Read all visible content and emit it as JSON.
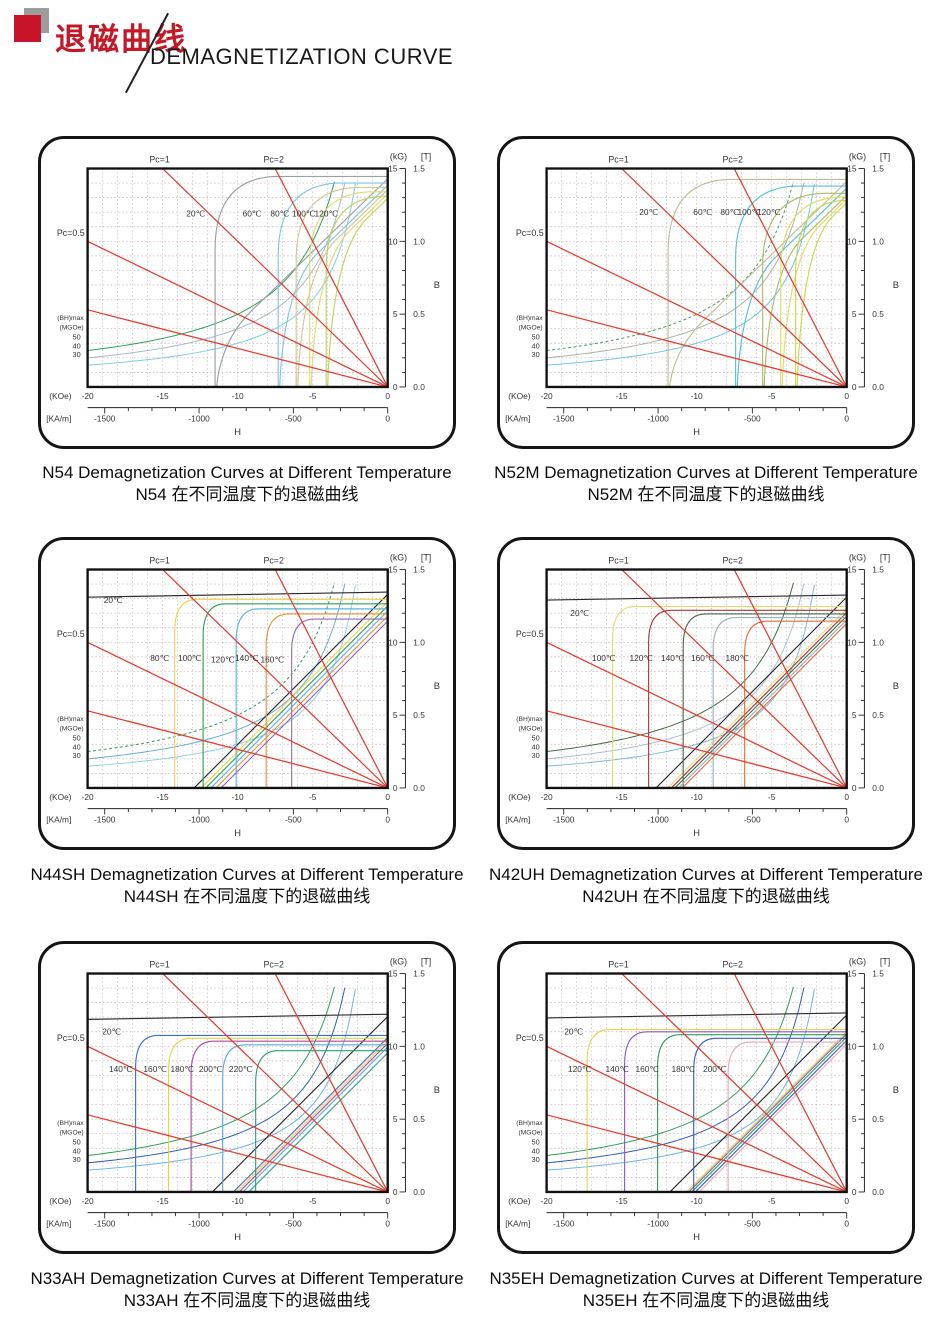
{
  "header": {
    "title_zh": "退磁曲线",
    "title_en": "DEMAGNETIZATION CURVE",
    "accent_color": "#c81428"
  },
  "axes": {
    "pc1": "Pc=1",
    "pc2": "Pc=2",
    "pc05": "Pc=0.5",
    "kg": "(kG)",
    "t": "[T]",
    "kg_ticks": [
      15,
      10,
      5,
      0
    ],
    "t_ticks": [
      "1.5",
      "1.0",
      "0.5",
      "0.0"
    ],
    "koe": "(KOe)",
    "koe_ticks": [
      -20,
      -15,
      -10,
      -5,
      0
    ],
    "kam": "[KA/m]",
    "kam_ticks": [
      -1500,
      -1000,
      -500,
      0
    ],
    "h": "H",
    "b": "B",
    "bh": [
      "(BH)max",
      "(MGOe)"
    ],
    "bh_values": [
      "50",
      "40",
      "30"
    ],
    "x_range_koe": [
      -20,
      0
    ],
    "y_range_kg": [
      0,
      15
    ],
    "load_line_color": "#e23b2e",
    "load_lines": [
      [
        -7.5,
        15
      ],
      [
        -15,
        15
      ],
      [
        -20,
        10
      ],
      [
        -20,
        5.3
      ]
    ]
  },
  "chart_data": [
    {
      "grade": "N54",
      "type": "line",
      "title_en": "N54 Demagnetization Curves at Different Temperature",
      "title_zh": "N54 在不同温度下的退磁曲线",
      "hyp_colors": [
        "#2f9e57",
        "#a4bac6",
        "#7ecbe4"
      ],
      "dash50": false,
      "temps": [
        {
          "label": "20℃",
          "color": "#9aa0a0",
          "jr": 14.45,
          "hcj": 11.5,
          "soft": true,
          "lp": [
            -12.8,
            11.7
          ]
        },
        {
          "label": "60℃",
          "color": "#7ec4e4",
          "jr": 14.0,
          "hcj": 7.3,
          "soft": true,
          "lp": [
            -9.05,
            11.7
          ]
        },
        {
          "label": "80℃",
          "color": "#d2c694",
          "jr": 13.7,
          "hcj": 6.1,
          "soft": true,
          "lp": [
            -7.2,
            11.7
          ]
        },
        {
          "label": "100℃",
          "color": "#e4da74",
          "jr": 13.4,
          "hcj": 5.2,
          "soft": true,
          "lp": [
            -5.6,
            11.7
          ]
        },
        {
          "label": "120℃",
          "color": "#bcd45e",
          "jr": 13.1,
          "hcj": 4.1,
          "soft": true,
          "lp": [
            -4.1,
            11.7
          ]
        }
      ]
    },
    {
      "grade": "N52M",
      "type": "line",
      "title_en": "N52M Demagnetization Curves at Different Temperature",
      "title_zh": "N52M 在不同温度下的退磁曲线",
      "hyp_colors": [
        "#3fa05f",
        "#a8b4a0",
        "#6ec4e0"
      ],
      "dash50": true,
      "temps": [
        {
          "label": "20℃",
          "color": "#c0bc96",
          "jr": 14.25,
          "hcj": 11.9,
          "soft": true,
          "lp": [
            -13.2,
            11.8
          ]
        },
        {
          "label": "60℃",
          "color": "#58c0d8",
          "jr": 13.8,
          "hcj": 7.4,
          "soft": true,
          "lp": [
            -9.6,
            11.8
          ]
        },
        {
          "label": "80℃",
          "color": "#a8bc6a",
          "jr": 13.3,
          "hcj": 5.6,
          "soft": true,
          "lp": [
            -7.8,
            11.8
          ]
        },
        {
          "label": "100℃",
          "color": "#e4d966",
          "jr": 13.05,
          "hcj": 4.4,
          "soft": true,
          "lp": [
            -6.5,
            11.8
          ]
        },
        {
          "label": "120℃",
          "color": "#c8d848",
          "jr": 12.8,
          "hcj": 3.4,
          "soft": true,
          "lp": [
            -5.2,
            11.8
          ]
        }
      ]
    },
    {
      "grade": "N44SH",
      "type": "line",
      "title_en": "N44SH Demagnetization Curves at Different Temperature",
      "title_zh": "N44SH 在不同温度下的退磁曲线",
      "hyp_colors": [
        "#2f9e57",
        "#6aaad4",
        "#8fd0e8"
      ],
      "dash50": true,
      "temps": [
        {
          "label": "20℃",
          "color": "#2a2a2a",
          "jr": 13.45,
          "hcj": 25,
          "soft": false,
          "lp": [
            -18.3,
            12.7
          ]
        },
        {
          "label": "80℃",
          "color": "#eed34e",
          "jr": 12.95,
          "hcj": 14.2,
          "soft": false,
          "lp": [
            -15.2,
            8.7
          ]
        },
        {
          "label": "100℃",
          "color": "#2f9e57",
          "jr": 12.65,
          "hcj": 12.3,
          "soft": false,
          "lp": [
            -13.2,
            8.7
          ]
        },
        {
          "label": "120℃",
          "color": "#5ab4e0",
          "jr": 12.3,
          "hcj": 10.1,
          "soft": false,
          "lp": [
            -11.0,
            8.6
          ]
        },
        {
          "label": "140℃",
          "color": "#e8913e",
          "jr": 11.95,
          "hcj": 8.1,
          "soft": false,
          "lp": [
            -9.4,
            8.7
          ]
        },
        {
          "label": "160℃",
          "color": "#9a6ab4",
          "jr": 11.6,
          "hcj": 6.4,
          "soft": false,
          "lp": [
            -7.7,
            8.6
          ]
        }
      ]
    },
    {
      "grade": "N42UH",
      "type": "line",
      "title_en": "N42UH Demagnetization Curves at Different Temperature",
      "title_zh": "N42UH 在不同温度下的退磁曲线",
      "hyp_colors": [
        "#3f6b45",
        "#a8c0d0",
        "#7ab8dc"
      ],
      "dash50": false,
      "temps": [
        {
          "label": "20℃",
          "color": "#2a2a2a",
          "jr": 13.25,
          "hcj": 25,
          "soft": false,
          "lp": [
            -17.8,
            11.8
          ]
        },
        {
          "label": "100℃",
          "color": "#e6d87a",
          "jr": 12.45,
          "hcj": 15.6,
          "soft": false,
          "lp": [
            -16.2,
            8.7
          ]
        },
        {
          "label": "120℃",
          "color": "#a03a30",
          "jr": 12.2,
          "hcj": 13.2,
          "soft": false,
          "lp": [
            -13.7,
            8.7
          ]
        },
        {
          "label": "140℃",
          "color": "#4a6b45",
          "jr": 11.95,
          "hcj": 10.9,
          "soft": false,
          "lp": [
            -11.6,
            8.7
          ]
        },
        {
          "label": "160℃",
          "color": "#9ab0c4",
          "jr": 11.7,
          "hcj": 8.9,
          "soft": false,
          "lp": [
            -9.6,
            8.7
          ]
        },
        {
          "label": "180℃",
          "color": "#e2703a",
          "jr": 11.45,
          "hcj": 6.8,
          "soft": false,
          "lp": [
            -7.3,
            8.7
          ]
        }
      ]
    },
    {
      "grade": "N33AH",
      "type": "line",
      "title_en": "N33AH Demagnetization Curves at Different Temperature",
      "title_zh": "N33AH 在不同温度下的退磁曲线",
      "hyp_colors": [
        "#2f9e57",
        "#2f5fb0",
        "#6ab4e0"
      ],
      "dash50": false,
      "temps": [
        {
          "label": "20℃",
          "color": "#2a2a2a",
          "jr": 12.2,
          "hcj": 25,
          "soft": false,
          "lp": [
            -18.4,
            10.8
          ]
        },
        {
          "label": "140℃",
          "color": "#3a6fc4",
          "jr": 10.75,
          "hcj": 16.8,
          "soft": false,
          "lp": [
            -17.8,
            8.25
          ]
        },
        {
          "label": "160℃",
          "color": "#e6d44e",
          "jr": 10.55,
          "hcj": 14.6,
          "soft": false,
          "lp": [
            -15.5,
            8.25
          ]
        },
        {
          "label": "180℃",
          "color": "#ae4a9e",
          "jr": 10.35,
          "hcj": 13.1,
          "soft": false,
          "lp": [
            -13.7,
            8.25
          ]
        },
        {
          "label": "200℃",
          "color": "#56a8d8",
          "jr": 10.1,
          "hcj": 11.0,
          "soft": false,
          "lp": [
            -11.8,
            8.25
          ]
        },
        {
          "label": "220℃",
          "color": "#2f9e82",
          "jr": 9.7,
          "hcj": 8.8,
          "soft": false,
          "lp": [
            -9.8,
            8.25
          ]
        }
      ]
    },
    {
      "grade": "N35EH",
      "type": "line",
      "title_en": "N35EH Demagnetization Curves at Different Temperature",
      "title_zh": "N35EH 在不同温度下的退磁曲线",
      "hyp_colors": [
        "#2f9e57",
        "#2f5fb0",
        "#6ab4e0"
      ],
      "dash50": false,
      "temps": [
        {
          "label": "20℃",
          "color": "#2a2a2a",
          "jr": 12.3,
          "hcj": 25,
          "soft": false,
          "lp": [
            -18.2,
            10.8
          ]
        },
        {
          "label": "120℃",
          "color": "#e6d44e",
          "jr": 11.15,
          "hcj": 17.3,
          "soft": false,
          "lp": [
            -17.8,
            8.25
          ]
        },
        {
          "label": "140℃",
          "color": "#8a5ab8",
          "jr": 11.0,
          "hcj": 14.8,
          "soft": false,
          "lp": [
            -15.3,
            8.25
          ]
        },
        {
          "label": "160℃",
          "color": "#2f9e57",
          "jr": 10.8,
          "hcj": 12.6,
          "soft": false,
          "lp": [
            -13.3,
            8.25
          ]
        },
        {
          "label": "180℃",
          "color": "#3a5fc4",
          "jr": 10.55,
          "hcj": 10.2,
          "soft": false,
          "lp": [
            -10.9,
            8.25
          ]
        },
        {
          "label": "200℃",
          "color": "#e8a8b8",
          "jr": 10.3,
          "hcj": 7.9,
          "soft": false,
          "lp": [
            -8.8,
            8.25
          ]
        }
      ]
    }
  ]
}
